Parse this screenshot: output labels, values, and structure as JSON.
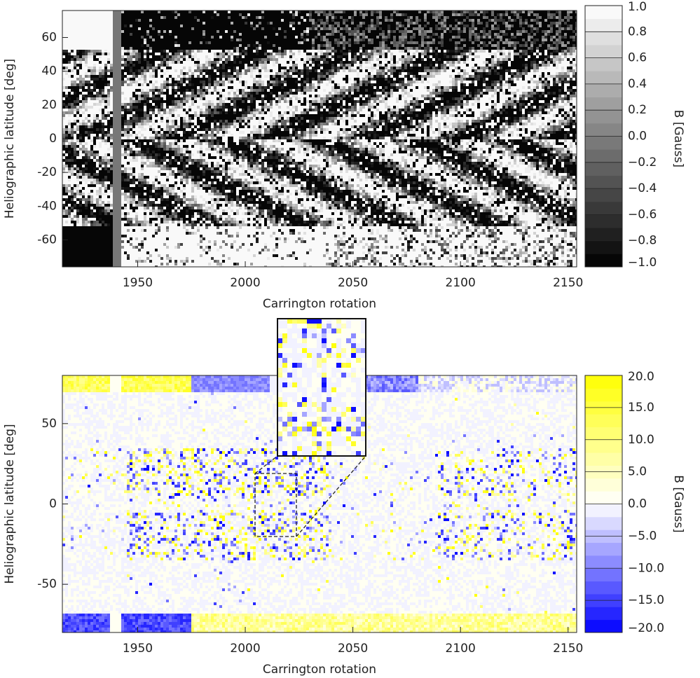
{
  "chart_data": [
    {
      "type": "heatmap",
      "xlabel": "Carrington rotation",
      "ylabel": "Heliographic latitude [deg]",
      "xlim": [
        1915,
        2154
      ],
      "ylim": [
        -76,
        76
      ],
      "xticks": [
        1950,
        2000,
        2050,
        2100,
        2150
      ],
      "yticks": [
        -60,
        -40,
        -20,
        0,
        20,
        40,
        60
      ],
      "gap_color": "#777777",
      "colorbar": {
        "label": "B [Gauss]",
        "lim": [
          -1,
          1
        ],
        "colormap": [
          "#000000",
          "#ffffff"
        ],
        "ticks": [
          {
            "value": -1,
            "label": "−1.0"
          },
          {
            "value": -0.8,
            "label": "−0.8"
          },
          {
            "value": -0.6,
            "label": "−0.6"
          },
          {
            "value": -0.4,
            "label": "−0.4"
          },
          {
            "value": -0.2,
            "label": "−0.2"
          },
          {
            "value": 0,
            "label": "0.0"
          },
          {
            "value": 0.2,
            "label": "0.2"
          },
          {
            "value": 0.4,
            "label": "0.4"
          },
          {
            "value": 0.6,
            "label": "0.6"
          },
          {
            "value": 0.8,
            "label": "0.8"
          },
          {
            "value": 1,
            "label": "1.0"
          }
        ]
      }
    },
    {
      "type": "heatmap",
      "xlabel": "Carrington rotation",
      "ylabel": "Heliographic latitude [deg]",
      "xlim": [
        1915,
        2154
      ],
      "ylim": [
        -80,
        80
      ],
      "xticks": [
        1950,
        2000,
        2050,
        2100,
        2150
      ],
      "yticks": [
        -50,
        0,
        50
      ],
      "colorbar": {
        "label": "B [Gauss]",
        "lim": [
          -20,
          20
        ],
        "colormap": [
          "#0000ff",
          "#ffffff",
          "#ffff00"
        ],
        "ticks": [
          {
            "value": -20,
            "label": "−20.0"
          },
          {
            "value": -15,
            "label": "−15.0"
          },
          {
            "value": -10,
            "label": "−10.0"
          },
          {
            "value": -5,
            "label": "−5.0"
          },
          {
            "value": 0,
            "label": "0.0"
          },
          {
            "value": 5,
            "label": "5.0"
          },
          {
            "value": 10,
            "label": "10.0"
          },
          {
            "value": 15,
            "label": "15.0"
          },
          {
            "value": 20,
            "label": "20.0"
          }
        ]
      }
    }
  ]
}
